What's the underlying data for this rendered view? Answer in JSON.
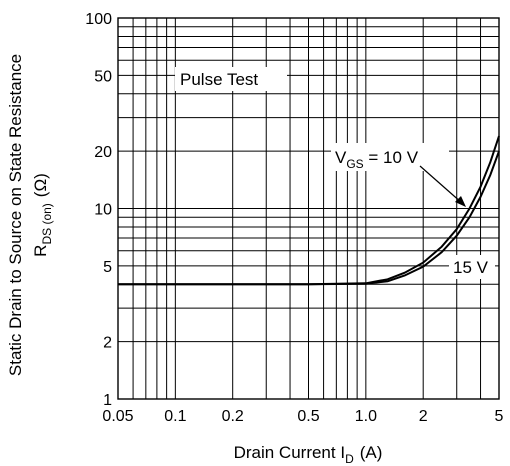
{
  "chart_data": {
    "type": "line",
    "x_scale": "log",
    "y_scale": "log",
    "xlim": [
      0.05,
      5
    ],
    "ylim": [
      1,
      100
    ],
    "grid": true,
    "x_ticks": [
      {
        "v": 0.05,
        "label": "0.05"
      },
      {
        "v": 0.1,
        "label": "0.1"
      },
      {
        "v": 0.2,
        "label": "0.2"
      },
      {
        "v": 0.5,
        "label": "0.5"
      },
      {
        "v": 1,
        "label": "1.0"
      },
      {
        "v": 2,
        "label": "2"
      },
      {
        "v": 5,
        "label": "5"
      }
    ],
    "y_ticks": [
      {
        "v": 1,
        "label": "1"
      },
      {
        "v": 2,
        "label": "2"
      },
      {
        "v": 5,
        "label": "5"
      },
      {
        "v": 10,
        "label": "10"
      },
      {
        "v": 20,
        "label": "20"
      },
      {
        "v": 50,
        "label": "50"
      },
      {
        "v": 100,
        "label": "100"
      }
    ],
    "xlabel": {
      "main": "Drain Current  I",
      "sub": "D",
      "unit": "(A)"
    },
    "ylabel": {
      "line1": "Static Drain to Source on State Resistance",
      "main": "R",
      "sub": "DS (on)",
      "unit": "(Ω)"
    },
    "annotation": "Pulse Test",
    "series": [
      {
        "label_main": "V",
        "label_sub": "GS",
        "label_rest": " = 10 V",
        "points": [
          [
            0.05,
            4.0
          ],
          [
            0.5,
            4.0
          ],
          [
            1.0,
            4.05
          ],
          [
            1.3,
            4.25
          ],
          [
            1.6,
            4.6
          ],
          [
            2.0,
            5.2
          ],
          [
            2.5,
            6.3
          ],
          [
            3.0,
            7.8
          ],
          [
            3.5,
            10.0
          ],
          [
            4.0,
            13.0
          ],
          [
            4.5,
            17.5
          ],
          [
            5.0,
            24.0
          ]
        ]
      },
      {
        "label": "15 V",
        "points": [
          [
            0.05,
            4.0
          ],
          [
            0.5,
            4.0
          ],
          [
            1.0,
            4.03
          ],
          [
            1.3,
            4.15
          ],
          [
            1.6,
            4.45
          ],
          [
            2.0,
            4.95
          ],
          [
            2.5,
            5.9
          ],
          [
            3.0,
            7.2
          ],
          [
            3.5,
            9.0
          ],
          [
            4.0,
            11.5
          ],
          [
            4.5,
            15.0
          ],
          [
            5.0,
            20.0
          ]
        ]
      }
    ]
  }
}
